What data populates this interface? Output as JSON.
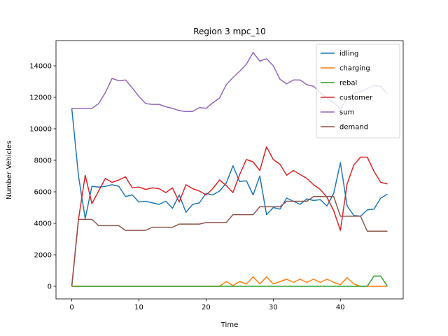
{
  "chart_data": {
    "type": "line",
    "title": "Region 3 mpc_10",
    "xlabel": "Time",
    "ylabel": "Number Vehicles",
    "xlim": [
      -2.35,
      49.35
    ],
    "ylim": [
      -800,
      15600
    ],
    "xticks": [
      0,
      10,
      20,
      30,
      40
    ],
    "yticks": [
      0,
      2000,
      4000,
      6000,
      8000,
      10000,
      12000,
      14000
    ],
    "grid": false,
    "legend_position": "top-right",
    "x": [
      0,
      1,
      2,
      3,
      4,
      5,
      6,
      7,
      8,
      9,
      10,
      11,
      12,
      13,
      14,
      15,
      16,
      17,
      18,
      19,
      20,
      21,
      22,
      23,
      24,
      25,
      26,
      27,
      28,
      29,
      30,
      31,
      32,
      33,
      34,
      35,
      36,
      37,
      38,
      39,
      40,
      41,
      42,
      43,
      44,
      45,
      46,
      47
    ],
    "series": [
      {
        "name": "idling",
        "color": "#1f77b4",
        "values": [
          11300,
          7000,
          4300,
          6350,
          6300,
          6350,
          6450,
          6350,
          5700,
          5800,
          5350,
          5400,
          5300,
          5200,
          5400,
          4950,
          5800,
          4700,
          5200,
          5300,
          5900,
          5800,
          6050,
          6550,
          7650,
          6650,
          6700,
          5800,
          7000,
          4550,
          5000,
          4900,
          5600,
          5400,
          5200,
          5550,
          5450,
          5500,
          5100,
          5900,
          7850,
          5100,
          4500,
          4450,
          4850,
          4900,
          5600,
          5850
        ]
      },
      {
        "name": "charging",
        "color": "#ff7f0e",
        "values": [
          0,
          0,
          0,
          0,
          0,
          0,
          0,
          0,
          0,
          0,
          0,
          0,
          0,
          0,
          0,
          0,
          0,
          0,
          0,
          0,
          0,
          0,
          0,
          300,
          50,
          300,
          150,
          600,
          150,
          600,
          150,
          300,
          450,
          250,
          450,
          250,
          450,
          250,
          450,
          250,
          100,
          550,
          150,
          0,
          0,
          0,
          0,
          0
        ]
      },
      {
        "name": "rebal",
        "color": "#2ca02c",
        "values": [
          0,
          0,
          0,
          0,
          0,
          0,
          0,
          0,
          0,
          0,
          0,
          0,
          0,
          0,
          0,
          0,
          0,
          0,
          0,
          0,
          0,
          0,
          0,
          0,
          0,
          0,
          0,
          0,
          0,
          0,
          0,
          0,
          0,
          0,
          0,
          0,
          0,
          0,
          0,
          0,
          0,
          0,
          0,
          0,
          0,
          650,
          650,
          0
        ]
      },
      {
        "name": "customer",
        "color": "#d62728",
        "values": [
          0,
          4250,
          7050,
          5250,
          6050,
          6850,
          6600,
          6750,
          6950,
          6250,
          6300,
          6150,
          6250,
          6200,
          5950,
          6250,
          5350,
          6450,
          6200,
          6050,
          5800,
          6200,
          6750,
          6400,
          5950,
          7100,
          8050,
          7900,
          7350,
          8850,
          8050,
          7750,
          7050,
          7350,
          7100,
          6850,
          6450,
          6150,
          5650,
          4800,
          3550,
          6500,
          7700,
          8200,
          8200,
          7300,
          6600,
          6500
        ]
      },
      {
        "name": "sum",
        "color": "#9467bd",
        "values": [
          11300,
          11300,
          11300,
          11300,
          11600,
          12300,
          13200,
          13050,
          13100,
          12600,
          12050,
          11600,
          11550,
          11550,
          11400,
          11300,
          11150,
          11100,
          11100,
          11350,
          11300,
          11650,
          11950,
          12800,
          13250,
          13650,
          14100,
          14850,
          14300,
          14450,
          14000,
          13150,
          12850,
          13100,
          13100,
          12800,
          12700,
          12300,
          11950,
          11650,
          11250,
          11950,
          12250,
          12350,
          12550,
          12750,
          12700,
          12200
        ]
      },
      {
        "name": "demand",
        "color": "#8c564b",
        "values": [
          0,
          4250,
          4250,
          4250,
          3850,
          3850,
          3850,
          3850,
          3550,
          3550,
          3550,
          3550,
          3750,
          3750,
          3750,
          3750,
          3950,
          3950,
          3950,
          3950,
          4050,
          4050,
          4050,
          4050,
          4550,
          4550,
          4550,
          4550,
          5050,
          5050,
          5050,
          5050,
          5400,
          5400,
          5400,
          5400,
          5700,
          5700,
          5700,
          5700,
          4450,
          4450,
          4450,
          4450,
          3500,
          3500,
          3500,
          3500
        ]
      }
    ]
  }
}
